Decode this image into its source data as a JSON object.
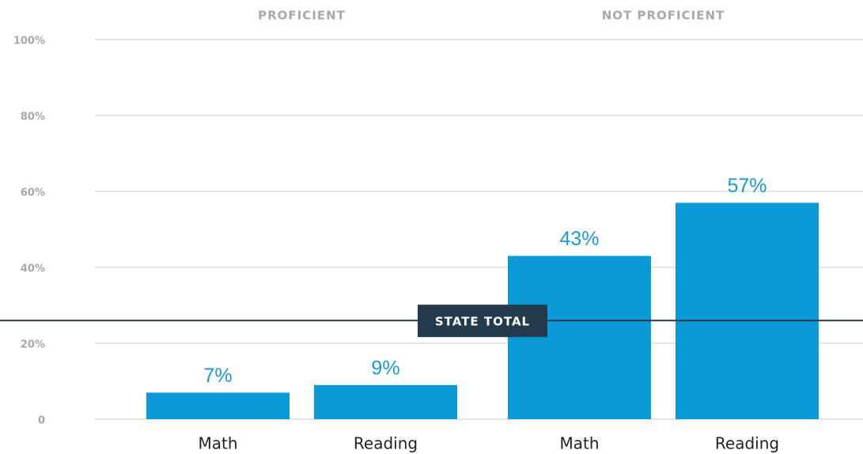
{
  "chart_data": {
    "type": "bar",
    "color": "#0b9ad8",
    "groups": [
      {
        "name": "PROFICIENT",
        "categories": [
          "Math",
          "Reading"
        ],
        "values": [
          7,
          9
        ],
        "value_labels": [
          "7%",
          "9%"
        ]
      },
      {
        "name": "NOT PROFICIENT",
        "categories": [
          "Math",
          "Reading"
        ],
        "values": [
          43,
          57
        ],
        "value_labels": [
          "43%",
          "57%"
        ]
      }
    ],
    "ylim": [
      0,
      100
    ],
    "yticks": [
      0,
      {
        "value": 20,
        "label": "20%"
      },
      {
        "value": 40,
        "label": "40%"
      },
      {
        "value": 60,
        "label": "60%"
      },
      {
        "value": 80,
        "label": "80%"
      },
      {
        "value": 100,
        "label": "100%"
      }
    ],
    "grid": true,
    "reference_line": {
      "label": "STATE TOTAL",
      "value": 26,
      "color": "#25394a"
    }
  }
}
